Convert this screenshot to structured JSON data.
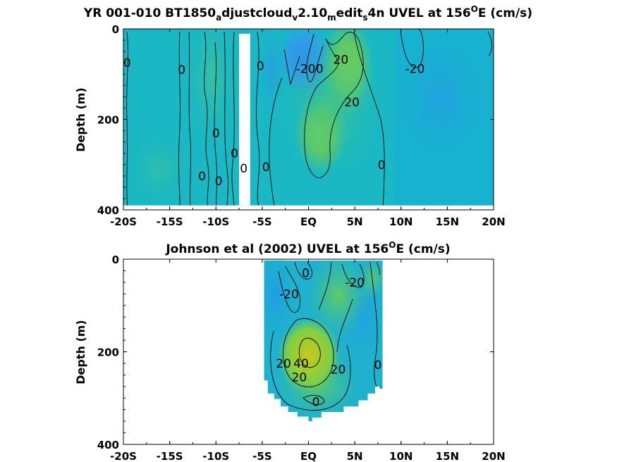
{
  "chart_data": [
    {
      "type": "heatmap",
      "title": "YR 001-010 BT1850_adjustcloud_v2.10_medit_s4n UVEL at 156°E (cm/s)",
      "title_parts": {
        "p1": "YR 001-010 BT1850",
        "s1": "a",
        "p2": "djustcloud",
        "s2": "v",
        "p3": "2.10",
        "s3": "m",
        "p4": "edit",
        "s4": "s",
        "p5": "4n UVEL at 156",
        "sup": "O",
        "p6": "E (cm/s)"
      },
      "ylabel": "Depth (m)",
      "x_tick_labels": [
        "-20S",
        "-15S",
        "-10S",
        "-5S",
        "EQ",
        "5N",
        "10N",
        "15N",
        "20N"
      ],
      "x_ticks": [
        -20,
        -15,
        -10,
        -5,
        0,
        5,
        10,
        15,
        20
      ],
      "y_tick_labels": [
        "0",
        "200",
        "400"
      ],
      "y_ticks": [
        0,
        200,
        400
      ],
      "xlim": [
        -20,
        20
      ],
      "ylim": [
        0,
        400
      ],
      "y_reversed": true,
      "data_extent": {
        "lat": [
          -20,
          20
        ],
        "depth": [
          0,
          390
        ]
      },
      "gap_lat": [
        -7.5,
        -6.3
      ],
      "contour_labels": [
        {
          "text": "0",
          "lat": -19.6,
          "depth": 75
        },
        {
          "text": "0",
          "lat": -13.7,
          "depth": 90
        },
        {
          "text": "0",
          "lat": -5.2,
          "depth": 82
        },
        {
          "text": "-20",
          "lat": -0.3,
          "depth": 88
        },
        {
          "text": "0",
          "lat": 1.2,
          "depth": 88
        },
        {
          "text": "20",
          "lat": 3.5,
          "depth": 68
        },
        {
          "text": "-20",
          "lat": 11.5,
          "depth": 88
        },
        {
          "text": "20",
          "lat": 4.7,
          "depth": 162
        },
        {
          "text": "0",
          "lat": -10.0,
          "depth": 230
        },
        {
          "text": "0",
          "lat": -8.0,
          "depth": 275
        },
        {
          "text": "0",
          "lat": -7.0,
          "depth": 308
        },
        {
          "text": "0",
          "lat": -11.5,
          "depth": 325
        },
        {
          "text": "0",
          "lat": -9.7,
          "depth": 336
        },
        {
          "text": "0",
          "lat": -4.6,
          "depth": 305
        },
        {
          "text": "0",
          "lat": 7.9,
          "depth": 300
        }
      ]
    },
    {
      "type": "heatmap",
      "title": "Johnson et al (2002) UVEL at 156°E (cm/s)",
      "title_parts": {
        "p1": "Johnson et al (2002) UVEL at 156",
        "sup": "O",
        "p2": "E (cm/s)"
      },
      "ylabel": "Depth (m)",
      "x_tick_labels": [
        "-20S",
        "-15S",
        "-10S",
        "-5S",
        "EQ",
        "5N",
        "10N",
        "15N",
        "20N"
      ],
      "x_ticks": [
        -20,
        -15,
        -10,
        -5,
        0,
        5,
        10,
        15,
        20
      ],
      "y_tick_labels": [
        "0",
        "200",
        "400"
      ],
      "y_ticks": [
        0,
        200,
        400
      ],
      "xlim": [
        -20,
        20
      ],
      "ylim": [
        0,
        400
      ],
      "y_reversed": true,
      "data_extent": {
        "lat": [
          -4.8,
          8.0
        ],
        "depth": [
          0,
          350
        ]
      },
      "contour_labels": [
        {
          "text": "0",
          "lat": -0.3,
          "depth": 30
        },
        {
          "text": "-20",
          "lat": -2.1,
          "depth": 75
        },
        {
          "text": "-20",
          "lat": 5.0,
          "depth": 50
        },
        {
          "text": "20",
          "lat": -2.7,
          "depth": 225
        },
        {
          "text": "40",
          "lat": -0.8,
          "depth": 225
        },
        {
          "text": "20",
          "lat": -1.0,
          "depth": 255
        },
        {
          "text": "20",
          "lat": 3.2,
          "depth": 238
        },
        {
          "text": "0",
          "lat": 7.5,
          "depth": 228
        },
        {
          "text": "0",
          "lat": 0.8,
          "depth": 308
        }
      ]
    }
  ]
}
